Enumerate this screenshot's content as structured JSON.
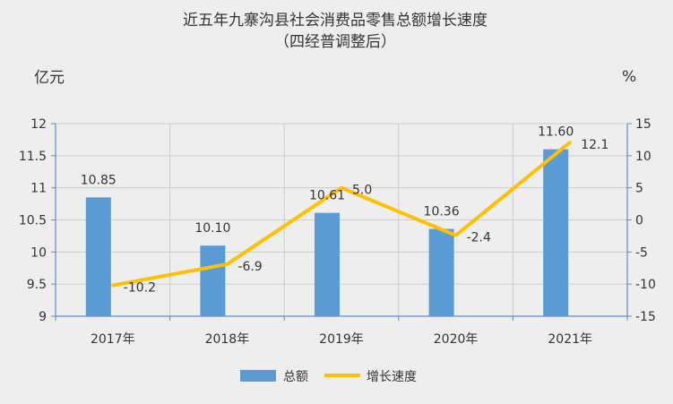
{
  "chart_data": {
    "type": "bar",
    "title": "近五年九寨沟县社会消费品零售总额增长速度",
    "subtitle": "（四经普调整后）",
    "left_unit": "亿元",
    "right_unit": "%",
    "categories": [
      "2017年",
      "2018年",
      "2019年",
      "2020年",
      "2021年"
    ],
    "series": [
      {
        "name": "总额",
        "type": "bar",
        "axis": "left",
        "color": "#5b9bd5",
        "values": [
          10.85,
          10.1,
          10.61,
          10.36,
          11.6
        ],
        "labels": [
          "10.85",
          "10.10",
          "10.61",
          "10.36",
          "11.60"
        ]
      },
      {
        "name": "增长速度",
        "type": "line",
        "axis": "right",
        "color": "#ffc000",
        "values": [
          -10.2,
          -6.9,
          5.0,
          -2.4,
          12.1
        ],
        "labels": [
          "-10.2",
          "-6.9",
          "5.0",
          "-2.4",
          "12.1"
        ]
      }
    ],
    "ylim": [
      9,
      12
    ],
    "yticks": [
      "9",
      "9.5",
      "10",
      "10.5",
      "11",
      "11.5",
      "12"
    ],
    "y2lim": [
      -15,
      15
    ],
    "y2ticks": [
      "-15",
      "-10",
      "-5",
      "0",
      "5",
      "10",
      "15"
    ],
    "grid": true,
    "legend_position": "bottom"
  }
}
